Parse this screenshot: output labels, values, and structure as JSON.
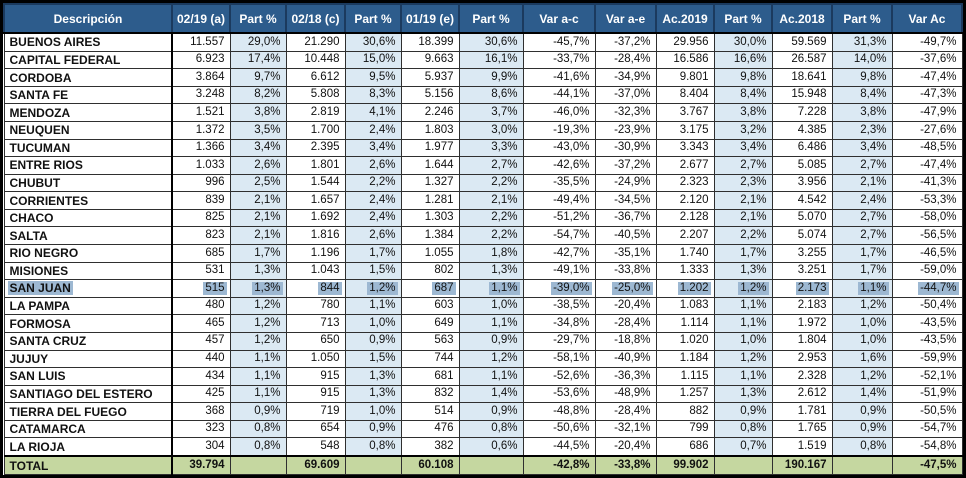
{
  "table": {
    "columns": [
      "Descripción",
      "02/19 (a)",
      "Part %",
      "02/18 (c)",
      "Part %",
      "01/19 (e)",
      "Part %",
      "Var a-c",
      "Var a-e",
      "Ac.2019",
      "Part %",
      "Ac.2018",
      "Part %",
      "Var Ac"
    ],
    "shaded_column_indexes": [
      1,
      3,
      5,
      9,
      11
    ],
    "highlighted_row": "SAN JUAN",
    "rows": [
      {
        "name": "BUENOS AIRES",
        "values": [
          "11.557",
          "29,0%",
          "21.290",
          "30,6%",
          "18.399",
          "30,6%",
          "-45,7%",
          "-37,2%",
          "29.956",
          "30,0%",
          "59.569",
          "31,3%",
          "-49,7%"
        ]
      },
      {
        "name": "CAPITAL FEDERAL",
        "values": [
          "6.923",
          "17,4%",
          "10.448",
          "15,0%",
          "9.663",
          "16,1%",
          "-33,7%",
          "-28,4%",
          "16.586",
          "16,6%",
          "26.587",
          "14,0%",
          "-37,6%"
        ]
      },
      {
        "name": "CORDOBA",
        "values": [
          "3.864",
          "9,7%",
          "6.612",
          "9,5%",
          "5.937",
          "9,9%",
          "-41,6%",
          "-34,9%",
          "9.801",
          "9,8%",
          "18.641",
          "9,8%",
          "-47,4%"
        ]
      },
      {
        "name": "SANTA FE",
        "values": [
          "3.248",
          "8,2%",
          "5.808",
          "8,3%",
          "5.156",
          "8,6%",
          "-44,1%",
          "-37,0%",
          "8.404",
          "8,4%",
          "15.948",
          "8,4%",
          "-47,3%"
        ]
      },
      {
        "name": "MENDOZA",
        "values": [
          "1.521",
          "3,8%",
          "2.819",
          "4,1%",
          "2.246",
          "3,7%",
          "-46,0%",
          "-32,3%",
          "3.767",
          "3,8%",
          "7.228",
          "3,8%",
          "-47,9%"
        ]
      },
      {
        "name": "NEUQUEN",
        "values": [
          "1.372",
          "3,5%",
          "1.700",
          "2,4%",
          "1.803",
          "3,0%",
          "-19,3%",
          "-23,9%",
          "3.175",
          "3,2%",
          "4.385",
          "2,3%",
          "-27,6%"
        ]
      },
      {
        "name": "TUCUMAN",
        "values": [
          "1.366",
          "3,4%",
          "2.395",
          "3,4%",
          "1.977",
          "3,3%",
          "-43,0%",
          "-30,9%",
          "3.343",
          "3,4%",
          "6.486",
          "3,4%",
          "-48,5%"
        ]
      },
      {
        "name": "ENTRE RIOS",
        "values": [
          "1.033",
          "2,6%",
          "1.801",
          "2,6%",
          "1.644",
          "2,7%",
          "-42,6%",
          "-37,2%",
          "2.677",
          "2,7%",
          "5.085",
          "2,7%",
          "-47,4%"
        ]
      },
      {
        "name": "CHUBUT",
        "values": [
          "996",
          "2,5%",
          "1.544",
          "2,2%",
          "1.327",
          "2,2%",
          "-35,5%",
          "-24,9%",
          "2.323",
          "2,3%",
          "3.956",
          "2,1%",
          "-41,3%"
        ]
      },
      {
        "name": "CORRIENTES",
        "values": [
          "839",
          "2,1%",
          "1.657",
          "2,4%",
          "1.281",
          "2,1%",
          "-49,4%",
          "-34,5%",
          "2.120",
          "2,1%",
          "4.542",
          "2,4%",
          "-53,3%"
        ]
      },
      {
        "name": "CHACO",
        "values": [
          "825",
          "2,1%",
          "1.692",
          "2,4%",
          "1.303",
          "2,2%",
          "-51,2%",
          "-36,7%",
          "2.128",
          "2,1%",
          "5.070",
          "2,7%",
          "-58,0%"
        ]
      },
      {
        "name": "SALTA",
        "values": [
          "823",
          "2,1%",
          "1.816",
          "2,6%",
          "1.384",
          "2,2%",
          "-54,7%",
          "-40,5%",
          "2.207",
          "2,2%",
          "5.074",
          "2,7%",
          "-56,5%"
        ]
      },
      {
        "name": "RIO NEGRO",
        "values": [
          "685",
          "1,7%",
          "1.196",
          "1,7%",
          "1.055",
          "1,8%",
          "-42,7%",
          "-35,1%",
          "1.740",
          "1,7%",
          "3.255",
          "1,7%",
          "-46,5%"
        ]
      },
      {
        "name": "MISIONES",
        "values": [
          "531",
          "1,3%",
          "1.043",
          "1,5%",
          "802",
          "1,3%",
          "-49,1%",
          "-33,8%",
          "1.333",
          "1,3%",
          "3.251",
          "1,7%",
          "-59,0%"
        ]
      },
      {
        "name": "SAN JUAN",
        "values": [
          "515",
          "1,3%",
          "844",
          "1,2%",
          "687",
          "1,1%",
          "-39,0%",
          "-25,0%",
          "1.202",
          "1,2%",
          "2.173",
          "1,1%",
          "-44,7%"
        ]
      },
      {
        "name": "LA PAMPA",
        "values": [
          "480",
          "1,2%",
          "780",
          "1,1%",
          "603",
          "1,0%",
          "-38,5%",
          "-20,4%",
          "1.083",
          "1,1%",
          "2.183",
          "1,2%",
          "-50,4%"
        ]
      },
      {
        "name": "FORMOSA",
        "values": [
          "465",
          "1,2%",
          "713",
          "1,0%",
          "649",
          "1,1%",
          "-34,8%",
          "-28,4%",
          "1.114",
          "1,1%",
          "1.972",
          "1,0%",
          "-43,5%"
        ]
      },
      {
        "name": "SANTA CRUZ",
        "values": [
          "457",
          "1,2%",
          "650",
          "0,9%",
          "563",
          "0,9%",
          "-29,7%",
          "-18,8%",
          "1.020",
          "1,0%",
          "1.804",
          "1,0%",
          "-43,5%"
        ]
      },
      {
        "name": "JUJUY",
        "values": [
          "440",
          "1,1%",
          "1.050",
          "1,5%",
          "744",
          "1,2%",
          "-58,1%",
          "-40,9%",
          "1.184",
          "1,2%",
          "2.953",
          "1,6%",
          "-59,9%"
        ]
      },
      {
        "name": "SAN LUIS",
        "values": [
          "434",
          "1,1%",
          "915",
          "1,3%",
          "681",
          "1,1%",
          "-52,6%",
          "-36,3%",
          "1.115",
          "1,1%",
          "2.328",
          "1,2%",
          "-52,1%"
        ]
      },
      {
        "name": "SANTIAGO DEL ESTERO",
        "values": [
          "425",
          "1,1%",
          "915",
          "1,3%",
          "832",
          "1,4%",
          "-53,6%",
          "-48,9%",
          "1.257",
          "1,3%",
          "2.612",
          "1,4%",
          "-51,9%"
        ]
      },
      {
        "name": "TIERRA DEL FUEGO",
        "values": [
          "368",
          "0,9%",
          "719",
          "1,0%",
          "514",
          "0,9%",
          "-48,8%",
          "-28,4%",
          "882",
          "0,9%",
          "1.781",
          "0,9%",
          "-50,5%"
        ]
      },
      {
        "name": "CATAMARCA",
        "values": [
          "323",
          "0,8%",
          "654",
          "0,9%",
          "476",
          "0,8%",
          "-50,6%",
          "-32,1%",
          "799",
          "0,8%",
          "1.765",
          "0,9%",
          "-54,7%"
        ]
      },
      {
        "name": "LA RIOJA",
        "values": [
          "304",
          "0,8%",
          "548",
          "0,8%",
          "382",
          "0,6%",
          "-44,5%",
          "-20,4%",
          "686",
          "0,7%",
          "1.519",
          "0,8%",
          "-54,8%"
        ]
      }
    ],
    "total_row": {
      "name": "TOTAL",
      "values": [
        "39.794",
        "",
        "69.609",
        "",
        "60.108",
        "",
        "-42,8%",
        "-33,8%",
        "99.902",
        "",
        "190.167",
        "",
        "-47,5%"
      ]
    },
    "colors": {
      "header_bg": "#2D5C8C",
      "header_text": "#FFFFFF",
      "shaded_column_bg": "#DBE9F3",
      "total_row_bg": "#C5D7A0",
      "selection_highlight": "#9DB8D2",
      "grid_border": "#2F2F2F",
      "outer_border": "#000000"
    }
  }
}
